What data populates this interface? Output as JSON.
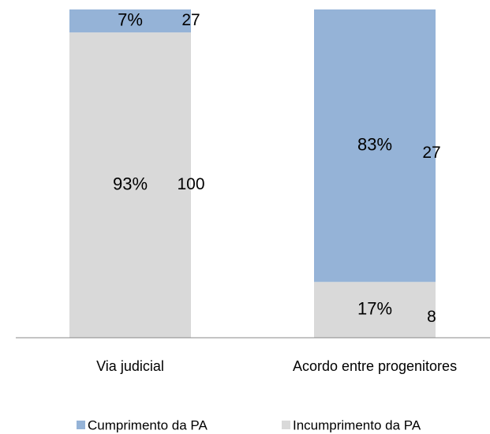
{
  "chart_data": {
    "type": "bar",
    "stacked": true,
    "categories": [
      "Via judicial",
      "Acordo entre progenitores"
    ],
    "series": [
      {
        "name": "Cumprimento da PA",
        "color": "#95b3d7",
        "values": [
          7,
          83
        ],
        "value_labels": [
          "7%",
          "83%"
        ],
        "counts": [
          27,
          27
        ]
      },
      {
        "name": "Incumprimento da PA",
        "color": "#d9d9d9",
        "values": [
          93,
          17
        ],
        "value_labels": [
          "93%",
          "17%"
        ],
        "counts": [
          100,
          8
        ]
      }
    ],
    "ylim": [
      0,
      100
    ],
    "legend": "bottom"
  }
}
